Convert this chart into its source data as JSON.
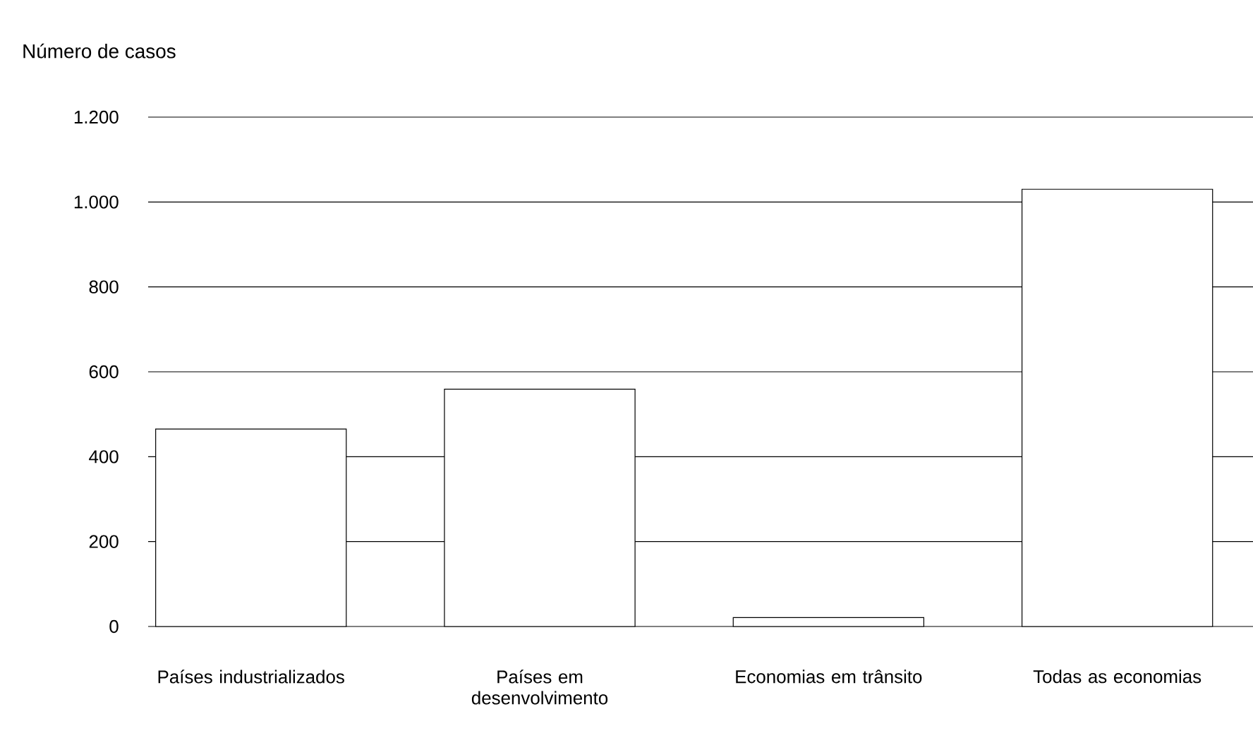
{
  "chart_data": {
    "type": "bar",
    "ylabel": "Número de casos",
    "categories": [
      "Países industrializados",
      "Países em desenvolvimento",
      "Economias em trânsito",
      "Todas as economias"
    ],
    "values": [
      465,
      559,
      21,
      1030
    ],
    "color": "#ffffff",
    "ylim": [
      0,
      1200
    ],
    "yticks": [
      0,
      200,
      400,
      600,
      800,
      {
        "value": 1000,
        "label": "1.000"
      },
      {
        "value": 1200,
        "label": "1.200"
      }
    ],
    "grid": "y"
  }
}
